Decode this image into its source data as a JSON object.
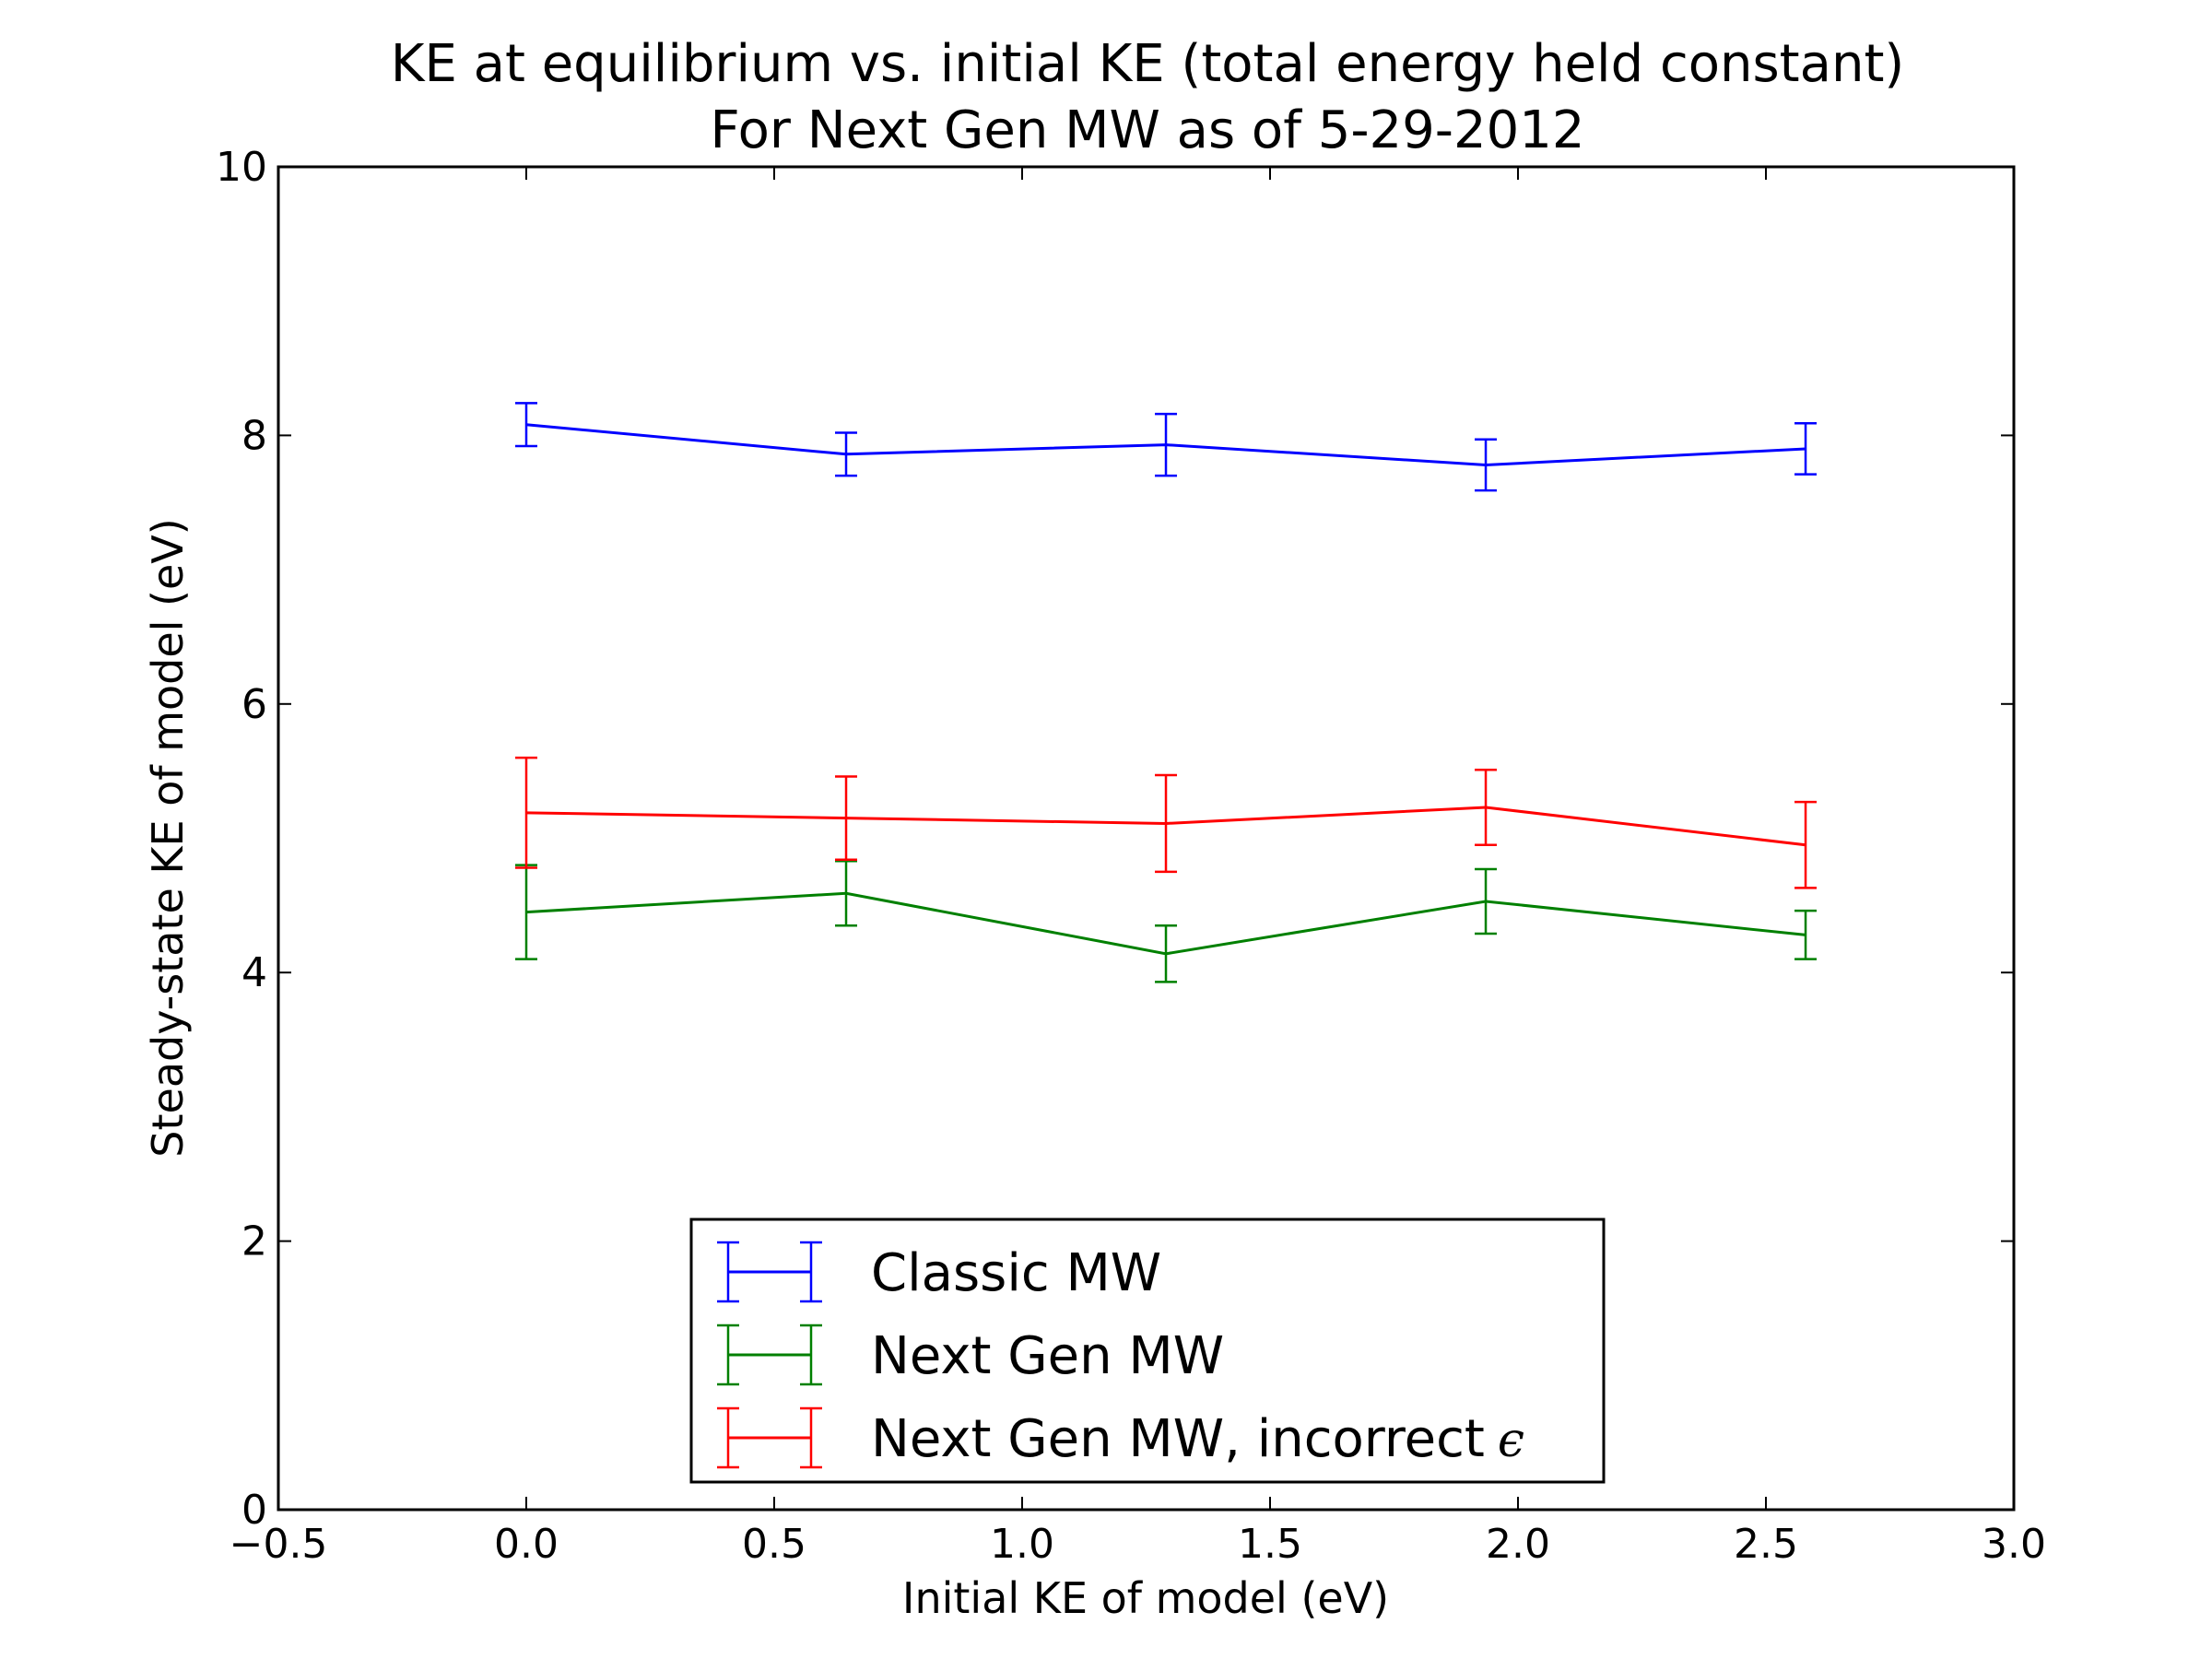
{
  "chart_data": {
    "type": "line",
    "title_line1": "KE at equilibrium vs. initial KE (total energy held constant)",
    "title_line2": "For Next Gen MW as of 5-29-2012",
    "xlabel": "Initial KE of model (eV)",
    "ylabel": "Steady-state KE of model (eV)",
    "xlim": [
      -0.5,
      3.0
    ],
    "ylim": [
      0,
      10
    ],
    "xticks": [
      -0.5,
      0.0,
      0.5,
      1.0,
      1.5,
      2.0,
      2.5,
      3.0
    ],
    "xtick_labels": [
      "−0.5",
      "0.0",
      "0.5",
      "1.0",
      "1.5",
      "2.0",
      "2.5",
      "3.0"
    ],
    "yticks": [
      0,
      2,
      4,
      6,
      8,
      10
    ],
    "ytick_labels": [
      "0",
      "2",
      "4",
      "6",
      "8",
      "10"
    ],
    "grid": false,
    "legend_position": "lower-center",
    "series": [
      {
        "name": "Classic MW",
        "color": "#0000ff",
        "x": [
          0.0,
          0.645,
          1.29,
          1.935,
          2.58
        ],
        "y": [
          8.08,
          7.86,
          7.93,
          7.78,
          7.9
        ],
        "err": [
          0.16,
          0.16,
          0.23,
          0.19,
          0.19
        ]
      },
      {
        "name": "Next Gen MW",
        "color": "#008000",
        "x": [
          0.0,
          0.645,
          1.29,
          1.935,
          2.58
        ],
        "y": [
          4.45,
          4.59,
          4.14,
          4.53,
          4.28
        ],
        "err": [
          0.35,
          0.24,
          0.21,
          0.24,
          0.18
        ]
      },
      {
        "name": "Next Gen MW, incorrect",
        "name_symbol": "ϵ",
        "color": "#ff0000",
        "x": [
          0.0,
          0.645,
          1.29,
          1.935,
          2.58
        ],
        "y": [
          5.19,
          5.15,
          5.11,
          5.23,
          4.95
        ],
        "err": [
          0.41,
          0.31,
          0.36,
          0.28,
          0.32
        ]
      }
    ]
  }
}
